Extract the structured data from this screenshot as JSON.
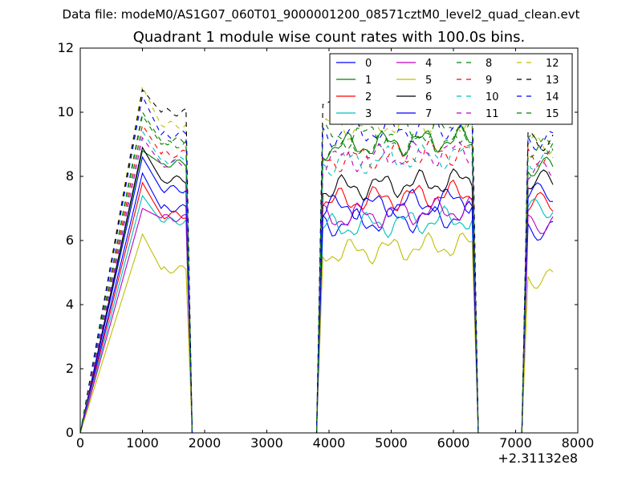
{
  "suptitle": "Data file: modeM0/AS1G07_060T01_9000001200_08571cztM0_level2_quad_clean.evt",
  "chart_data": {
    "type": "line",
    "title": "Quadrant 1 module wise count rates with 100.0s bins.",
    "xlabel": "",
    "ylabel": "",
    "x_offset_label": "+2.31132e8",
    "xlim": [
      0,
      8000
    ],
    "ylim": [
      0,
      12
    ],
    "xticks": [
      0,
      1000,
      2000,
      3000,
      4000,
      5000,
      6000,
      7000,
      8000
    ],
    "xtick_labels": [
      "0",
      "1000",
      "2000",
      "3000",
      "4000",
      "5000",
      "6000",
      "7000",
      "8000"
    ],
    "yticks": [
      0,
      2,
      4,
      6,
      8,
      10,
      12
    ],
    "ytick_labels": [
      "0",
      "2",
      "4",
      "6",
      "8",
      "10",
      "12"
    ],
    "grid": false,
    "legend_placement": "top-right",
    "legend_columns": 4,
    "segments": [
      {
        "start": 1000,
        "end": 1700,
        "drop_to": 1800
      },
      {
        "start": 3900,
        "end": 6300,
        "lead_in": 3800,
        "drop_to": 6400
      },
      {
        "start": 7200,
        "end": 7600,
        "lead_in": 7100
      }
    ],
    "series": [
      {
        "name": "0",
        "color": "#0000ff",
        "dash": "solid",
        "levels": [
          8.1,
          7.0,
          6.5,
          6.3
        ]
      },
      {
        "name": "1",
        "color": "#008000",
        "dash": "solid",
        "levels": [
          8.8,
          8.4,
          8.9,
          8.3
        ]
      },
      {
        "name": "2",
        "color": "#ff0000",
        "dash": "solid",
        "levels": [
          7.8,
          6.8,
          7.2,
          7.2
        ]
      },
      {
        "name": "3",
        "color": "#00bfbf",
        "dash": "solid",
        "levels": [
          7.4,
          6.6,
          6.4,
          7.0
        ]
      },
      {
        "name": "4",
        "color": "#bf00bf",
        "dash": "solid",
        "levels": [
          7.0,
          6.7,
          6.7,
          6.5
        ]
      },
      {
        "name": "5",
        "color": "#bfbf00",
        "dash": "solid",
        "levels": [
          6.2,
          5.1,
          5.6,
          4.8
        ]
      },
      {
        "name": "6",
        "color": "#000000",
        "dash": "solid",
        "levels": [
          8.9,
          7.9,
          7.6,
          7.9
        ]
      },
      {
        "name": "7",
        "color": "#0000ff",
        "dash": "solid",
        "levels": [
          8.6,
          7.6,
          7.0,
          7.5
        ]
      },
      {
        "name": "8",
        "color": "#008000",
        "dash": "dashed",
        "levels": [
          9.9,
          9.0,
          9.2,
          9.0
        ]
      },
      {
        "name": "9",
        "color": "#ff0000",
        "dash": "dashed",
        "levels": [
          9.6,
          8.7,
          8.5,
          8.6
        ]
      },
      {
        "name": "10",
        "color": "#00bfbf",
        "dash": "dashed",
        "levels": [
          9.4,
          8.5,
          8.4,
          8.5
        ]
      },
      {
        "name": "11",
        "color": "#bf00bf",
        "dash": "dashed",
        "levels": [
          9.2,
          8.4,
          8.5,
          8.2
        ]
      },
      {
        "name": "12",
        "color": "#bfbf00",
        "dash": "dashed",
        "levels": [
          10.8,
          9.6,
          9.5,
          9.0
        ]
      },
      {
        "name": "13",
        "color": "#000000",
        "dash": "dashed",
        "levels": [
          10.7,
          10.0,
          10.1,
          9.1
        ]
      },
      {
        "name": "14",
        "color": "#0000ff",
        "dash": "dashed",
        "levels": [
          10.5,
          9.3,
          9.3,
          9.1
        ]
      },
      {
        "name": "15",
        "color": "#008000",
        "dash": "dashed",
        "levels": [
          10.0,
          9.1,
          8.9,
          8.9
        ]
      }
    ]
  }
}
